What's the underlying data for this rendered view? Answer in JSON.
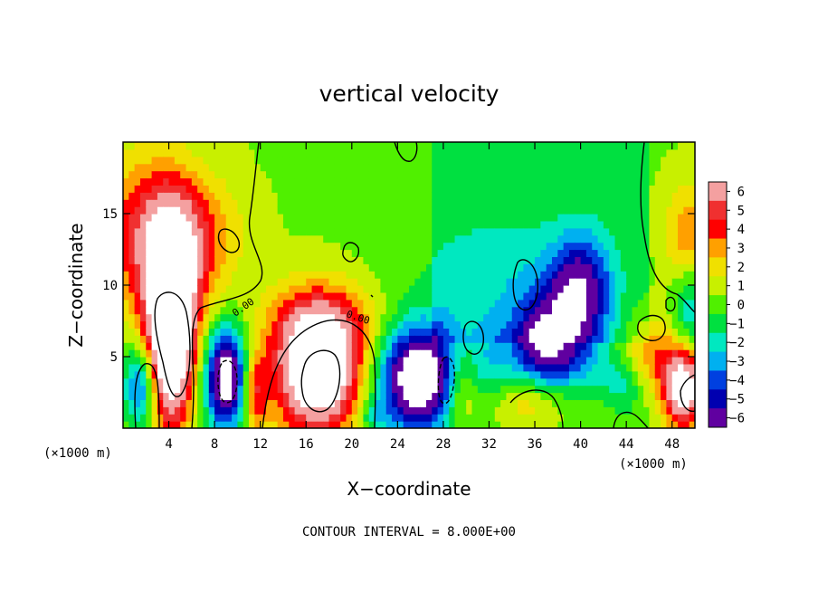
{
  "chart_data": {
    "type": "heatmap",
    "title": "vertical velocity",
    "xlabel": "X−coordinate",
    "ylabel": "Z−coordinate",
    "x_unit_label": "(×1000 m)",
    "x_unit_label_right": "(×1000 m)",
    "xlim": [
      0,
      50
    ],
    "ylim": [
      0,
      20
    ],
    "x_ticks": [
      "4",
      "8",
      "12",
      "16",
      "20",
      "24",
      "28",
      "32",
      "36",
      "40",
      "44",
      "48"
    ],
    "x_tick_values": [
      4,
      8,
      12,
      16,
      20,
      24,
      28,
      32,
      36,
      40,
      44,
      48
    ],
    "y_ticks": [
      "5",
      "10",
      "15"
    ],
    "y_tick_values": [
      5,
      10,
      15
    ],
    "colorbar_ticks": [
      "6",
      "5",
      "4",
      "3",
      "2",
      "1",
      "0",
      "−1",
      "−2",
      "−3",
      "−4",
      "−5",
      "−6"
    ],
    "colorbar_values": [
      6,
      5,
      4,
      3,
      2,
      1,
      0,
      -1,
      -2,
      -3,
      -4,
      -5,
      -6
    ],
    "colorbar_colors": [
      "#f4a0a0",
      "#f03030",
      "#ff0000",
      "#ffa000",
      "#f0e000",
      "#c8f000",
      "#50f000",
      "#00e040",
      "#00e8c0",
      "#00b0f0",
      "#0040e0",
      "#0000b0",
      "#6000a0"
    ],
    "contour_labels": [
      "0.00",
      "0.00"
    ],
    "contour_interval_text": "CONTOUR INTERVAL = 8.000E+00",
    "features": [
      {
        "x": 4.2,
        "z": 7.0,
        "sx": 1.4,
        "sz": 4.5,
        "w": 12
      },
      {
        "x": 4.0,
        "z": 11.5,
        "sx": 3.0,
        "sz": 3.5,
        "w": 4
      },
      {
        "x": 2.0,
        "z": 15.0,
        "sx": 3.5,
        "sz": 3.5,
        "w": 2.5
      },
      {
        "x": 6.5,
        "z": 14.0,
        "sx": 3.0,
        "sz": 2.5,
        "w": 1.5
      },
      {
        "x": 1.5,
        "z": 3.0,
        "sx": 1.0,
        "sz": 2.0,
        "w": -5
      },
      {
        "x": 9.0,
        "z": 3.5,
        "sx": 1.3,
        "sz": 2.5,
        "w": -9
      },
      {
        "x": 11.5,
        "z": 2.5,
        "sx": 0.8,
        "sz": 2.0,
        "w": 4
      },
      {
        "x": 17.0,
        "z": 4.0,
        "sx": 2.6,
        "sz": 3.0,
        "w": 10
      },
      {
        "x": 17.5,
        "z": 7.5,
        "sx": 3.5,
        "sz": 2.0,
        "w": 3
      },
      {
        "x": 26.0,
        "z": 3.5,
        "sx": 2.5,
        "sz": 2.6,
        "w": -10
      },
      {
        "x": 29.5,
        "z": 3.0,
        "sx": 1.2,
        "sz": 2.0,
        "w": 3
      },
      {
        "x": 32.0,
        "z": 4.0,
        "sx": 1.5,
        "sz": 2.5,
        "w": -2.5
      },
      {
        "x": 36.5,
        "z": 5.5,
        "sx": 2.0,
        "sz": 1.8,
        "w": -5
      },
      {
        "x": 40.0,
        "z": 10.0,
        "sx": 1.8,
        "sz": 2.5,
        "w": -5
      },
      {
        "x": 38.0,
        "z": 8.0,
        "sx": 2.5,
        "sz": 2.0,
        "w": -2.5
      },
      {
        "x": 39.0,
        "z": 4.0,
        "sx": 2.5,
        "sz": 2.5,
        "w": -3
      },
      {
        "x": 33.0,
        "z": 11.0,
        "sx": 6.0,
        "sz": 3.0,
        "w": -1.5
      },
      {
        "x": 36.0,
        "z": 2.0,
        "sx": 4.0,
        "sz": 1.5,
        "w": 2.5
      },
      {
        "x": 44.0,
        "z": 3.0,
        "sx": 1.5,
        "sz": 1.5,
        "w": -2.5
      },
      {
        "x": 46.0,
        "z": 5.0,
        "sx": 1.5,
        "sz": 2.0,
        "w": 3
      },
      {
        "x": 49.0,
        "z": 3.0,
        "sx": 1.2,
        "sz": 2.0,
        "w": 9
      },
      {
        "x": 49.5,
        "z": 8.0,
        "sx": 1.0,
        "sz": 2.5,
        "w": -3
      },
      {
        "x": 49.5,
        "z": 13.5,
        "sx": 1.5,
        "sz": 2.5,
        "w": 3
      },
      {
        "x": 22.0,
        "z": 1.0,
        "sx": 1.0,
        "sz": 1.0,
        "w": -2
      }
    ]
  }
}
